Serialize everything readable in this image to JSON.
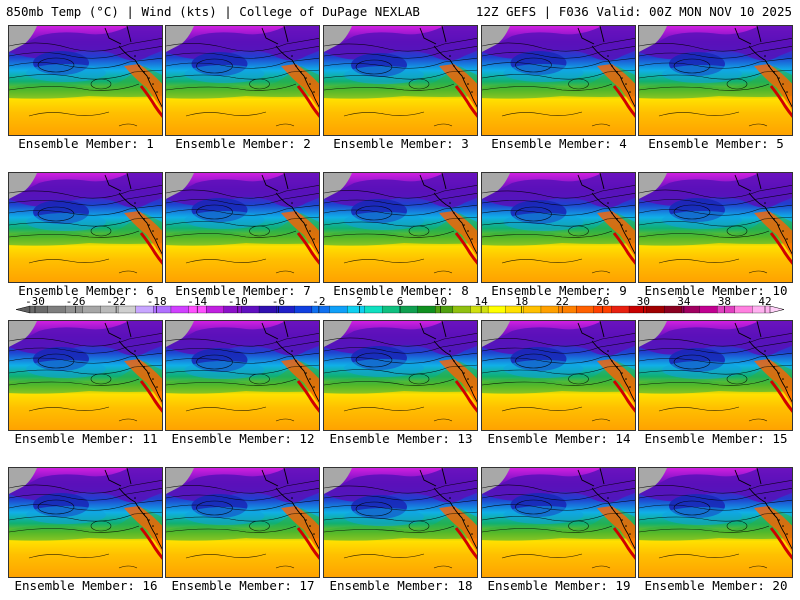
{
  "header": {
    "left": "850mb Temp (°C) | Wind (kts) | College of DuPage NEXLAB",
    "right": "12Z GEFS | F036 Valid: 00Z MON NOV 10 2025"
  },
  "members": [
    {
      "label": "Ensemble Member: 1"
    },
    {
      "label": "Ensemble Member: 2"
    },
    {
      "label": "Ensemble Member: 3"
    },
    {
      "label": "Ensemble Member: 4"
    },
    {
      "label": "Ensemble Member: 5"
    },
    {
      "label": "Ensemble Member: 6"
    },
    {
      "label": "Ensemble Member: 7"
    },
    {
      "label": "Ensemble Member: 8"
    },
    {
      "label": "Ensemble Member: 9"
    },
    {
      "label": "Ensemble Member: 10"
    },
    {
      "label": "Ensemble Member: 11"
    },
    {
      "label": "Ensemble Member: 12"
    },
    {
      "label": "Ensemble Member: 13"
    },
    {
      "label": "Ensemble Member: 14"
    },
    {
      "label": "Ensemble Member: 15"
    },
    {
      "label": "Ensemble Member: 16"
    },
    {
      "label": "Ensemble Member: 17"
    },
    {
      "label": "Ensemble Member: 18"
    },
    {
      "label": "Ensemble Member: 19"
    },
    {
      "label": "Ensemble Member: 20"
    }
  ],
  "colorbar": {
    "ticks": [
      "-30",
      "-26",
      "-22",
      "-18",
      "-14",
      "-10",
      "-6",
      "-2",
      "2",
      "6",
      "10",
      "14",
      "18",
      "22",
      "26",
      "30",
      "34",
      "38",
      "42"
    ],
    "colors": [
      "#6a6a6a",
      "#7e7e7e",
      "#929292",
      "#a6a6a6",
      "#bababa",
      "#cfcfcf",
      "#c8a6ff",
      "#b070ff",
      "#d040ff",
      "#ff50ff",
      "#c020e0",
      "#8a10c8",
      "#6010c0",
      "#3010b0",
      "#2020c8",
      "#1040e0",
      "#1070f0",
      "#10a0f8",
      "#10d0f0",
      "#10e0c0",
      "#10c080",
      "#10a050",
      "#109020",
      "#50a010",
      "#90c010",
      "#d0e010",
      "#ffff00",
      "#ffe000",
      "#ffc000",
      "#ffa000",
      "#ff8000",
      "#ff6000",
      "#ff4000",
      "#e82010",
      "#c80000",
      "#a00000",
      "#8a0020",
      "#a00060",
      "#c00090",
      "#e040c0",
      "#ff80e0",
      "#ffb0f0"
    ]
  }
}
